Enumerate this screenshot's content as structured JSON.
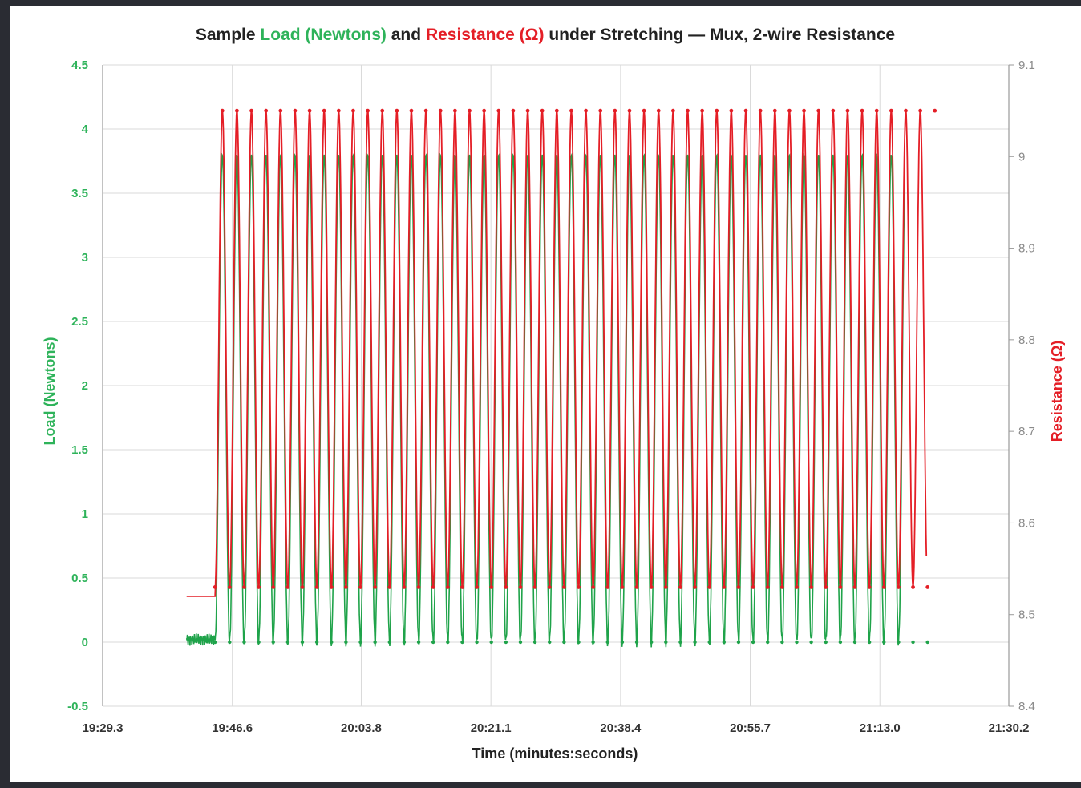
{
  "chart_data": {
    "type": "line",
    "title_parts": [
      {
        "text": "Sample ",
        "color": "#222222"
      },
      {
        "text": "Load (Newtons)",
        "color": "#2eb35a"
      },
      {
        "text": " and ",
        "color": "#222222"
      },
      {
        "text": "Resistance (Ω)",
        "color": "#e41e26"
      },
      {
        "text": " under Stretching — Mux, 2-wire Resistance",
        "color": "#222222"
      }
    ],
    "xlabel": "Time (minutes:seconds)",
    "ylabel_left": "Load (Newtons)",
    "ylabel_right": "Resistance (Ω)",
    "x_ticks": [
      "19:29.3",
      "19:46.6",
      "20:03.8",
      "20:21.1",
      "20:38.4",
      "20:55.7",
      "21:13.0",
      "21:30.2"
    ],
    "x_tick_seconds": [
      1169.3,
      1186.6,
      1203.8,
      1221.1,
      1238.4,
      1255.7,
      1273.0,
      1290.2
    ],
    "y_left_ticks": [
      "-0.5",
      "0",
      "0.5",
      "1",
      "1.5",
      "2",
      "2.5",
      "3",
      "3.5",
      "4",
      "4.5"
    ],
    "y_right_ticks": [
      "8.4",
      "8.5",
      "8.6",
      "8.7",
      "8.8",
      "8.9",
      "9",
      "9.1"
    ],
    "ylim_left": [
      -0.5,
      4.5
    ],
    "ylim_right": [
      8.4,
      9.1
    ],
    "xlim_seconds": [
      1169.3,
      1290.2
    ],
    "grid": true,
    "colors": {
      "load": "#1fa34a",
      "resistance": "#e41e26"
    },
    "series": [
      {
        "name": "Load (Newtons)",
        "axis": "left",
        "start_seconds": 1180.5,
        "end_seconds": 1276.3,
        "baseline_level": 0.02,
        "cycle_start_seconds": 1184.3,
        "cycle_count": 50,
        "cycle_period_seconds": 1.94,
        "peak_value": 3.8,
        "trough_value": 0.0,
        "trough_marker_value": 0.35
      },
      {
        "name": "Resistance (Ω)",
        "axis": "right",
        "start_seconds": 1180.5,
        "end_seconds": 1279.2,
        "baseline_level": 8.52,
        "end_level": 8.52,
        "cycle_start_seconds": 1184.3,
        "cycle_count": 50,
        "cycle_period_seconds": 1.94,
        "peak_value": 9.05,
        "trough_value": 8.53
      }
    ]
  }
}
